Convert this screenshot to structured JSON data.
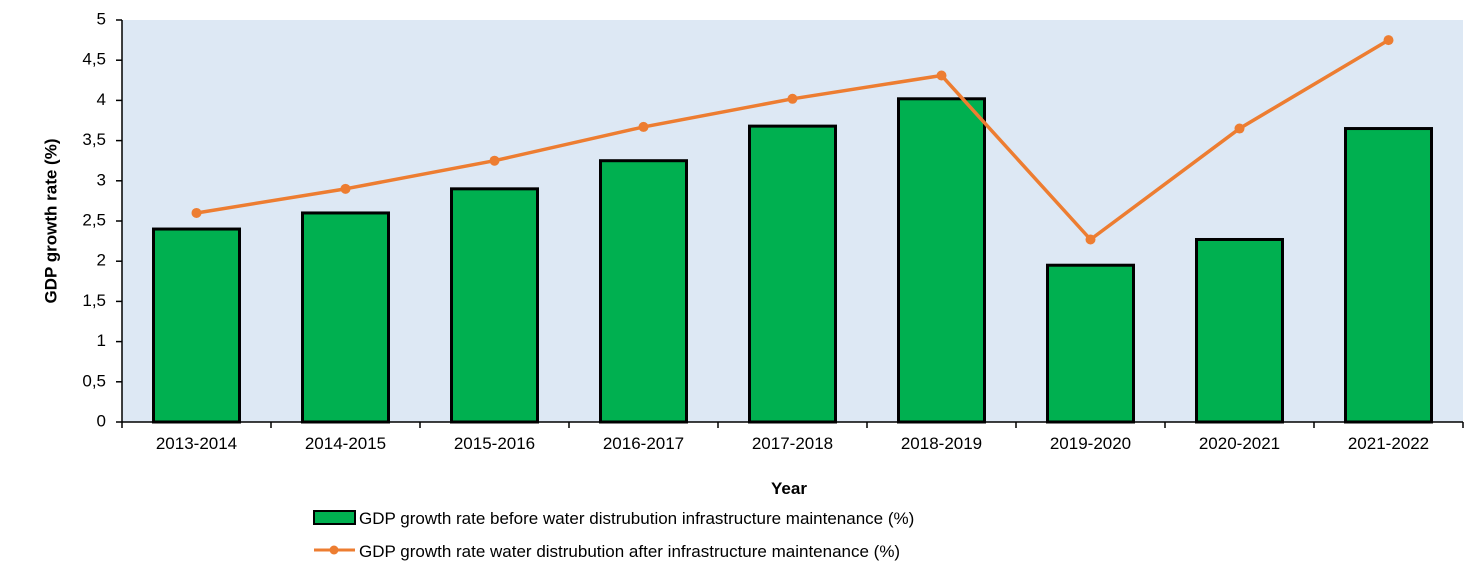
{
  "chart_data": {
    "type": "bar+line",
    "title": "",
    "xlabel": "Year",
    "ylabel": "GDP growth rate (%)",
    "ylim": [
      0,
      5
    ],
    "y_ticks": [
      "0",
      "0,5",
      "1",
      "1,5",
      "2",
      "2,5",
      "3",
      "3,5",
      "4",
      "4,5",
      "5"
    ],
    "y_tick_values": [
      0,
      0.5,
      1,
      1.5,
      2,
      2.5,
      3,
      3.5,
      4,
      4.5,
      5
    ],
    "categories": [
      "2013-2014",
      "2014-2015",
      "2015-2016",
      "2016-2017",
      "2017-2018",
      "2018-2019",
      "2019-2020",
      "2020-2021",
      "2021-2022"
    ],
    "series": [
      {
        "name": "GDP growth rate before water distrubution infrastructure maintenance (%)",
        "type": "bar",
        "color": "#00b050",
        "values": [
          2.4,
          2.6,
          2.9,
          3.25,
          3.68,
          4.02,
          1.95,
          2.27,
          3.65
        ]
      },
      {
        "name": "GDP growth rate water distrubution after infrastructure maintenance (%)",
        "type": "line",
        "color": "#ed7d31",
        "values": [
          2.6,
          2.9,
          3.25,
          3.67,
          4.02,
          4.31,
          2.27,
          3.65,
          4.75
        ]
      }
    ],
    "plot_background": "#dde8f4",
    "grid": false,
    "legend_position": "bottom"
  }
}
